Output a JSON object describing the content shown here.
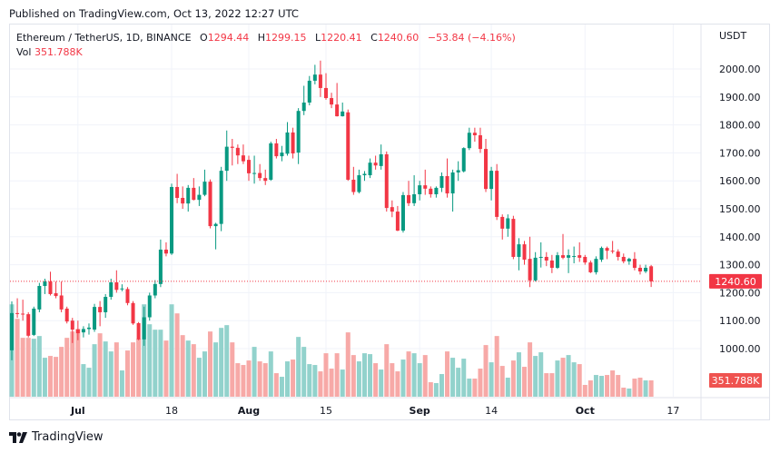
{
  "published": "Published on TradingView.com, Oct 13, 2022 12:27 UTC",
  "legend": {
    "symbol": "Ethereum / TetherUS, 1D, BINANCE",
    "o_label": "O",
    "o": "1294.44",
    "h_label": "H",
    "h": "1299.15",
    "l_label": "L",
    "l": "1220.41",
    "c_label": "C",
    "c": "1240.60",
    "change": "−53.84 (−4.16%)",
    "vol_label": "Vol",
    "vol": "351.788K"
  },
  "footer": {
    "brand": "TradingView"
  },
  "colors": {
    "up": "#089981",
    "down": "#f23645",
    "vol_up": "#92d2cc",
    "vol_down": "#f7a9a7",
    "grid": "#f0f3fa"
  },
  "chart_data": {
    "type": "candlestick",
    "currency": "USDT",
    "x_range": [
      "2022-06-19",
      "2022-10-13"
    ],
    "ylim": [
      870,
      2100
    ],
    "grid": true,
    "y_ticks": [
      "2000.00",
      "1900.00",
      "1800.00",
      "1700.00",
      "1600.00",
      "1500.00",
      "1400.00",
      "1300.00",
      "1200.00",
      "1100.00",
      "1000.00"
    ],
    "x_ticks": [
      {
        "label": "Jul",
        "date": "2022-07-01"
      },
      {
        "label": "18",
        "date": "2022-07-18"
      },
      {
        "label": "Aug",
        "date": "2022-08-01"
      },
      {
        "label": "15",
        "date": "2022-08-15"
      },
      {
        "label": "Sep",
        "date": "2022-09-01"
      },
      {
        "label": "14",
        "date": "2022-09-14"
      },
      {
        "label": "Oct",
        "date": "2022-10-01"
      },
      {
        "label": "17",
        "date": "2022-10-17"
      }
    ],
    "last_price": 1240.6,
    "last_price_label": "1240.60",
    "last_volume_label": "351.788K",
    "ohlc": [
      [
        994,
        1169,
        958,
        1127
      ],
      [
        1127,
        1180,
        1110,
        1125
      ],
      [
        1125,
        1175,
        1100,
        1122
      ],
      [
        1123,
        1130,
        1040,
        1046
      ],
      [
        1049,
        1150,
        1045,
        1143
      ],
      [
        1140,
        1235,
        1130,
        1224
      ],
      [
        1224,
        1250,
        1195,
        1240
      ],
      [
        1240,
        1275,
        1190,
        1195
      ],
      [
        1198,
        1240,
        1180,
        1188
      ],
      [
        1190,
        1240,
        1130,
        1140
      ],
      [
        1143,
        1150,
        1090,
        1097
      ],
      [
        1100,
        1110,
        1020,
        1068
      ],
      [
        1068,
        1100,
        1030,
        1055
      ],
      [
        1058,
        1080,
        1040,
        1070
      ],
      [
        1070,
        1090,
        1050,
        1075
      ],
      [
        1068,
        1160,
        1060,
        1149
      ],
      [
        1149,
        1170,
        1080,
        1130
      ],
      [
        1130,
        1195,
        1110,
        1185
      ],
      [
        1185,
        1250,
        1175,
        1237
      ],
      [
        1237,
        1280,
        1200,
        1210
      ],
      [
        1212,
        1230,
        1205,
        1215
      ],
      [
        1213,
        1220,
        1155,
        1163
      ],
      [
        1163,
        1170,
        1085,
        1090
      ],
      [
        1091,
        1095,
        1030,
        1033
      ],
      [
        1033,
        1150,
        1010,
        1112
      ],
      [
        1112,
        1200,
        1100,
        1190
      ],
      [
        1190,
        1245,
        1180,
        1231
      ],
      [
        1231,
        1390,
        1220,
        1354
      ],
      [
        1354,
        1380,
        1330,
        1340
      ],
      [
        1340,
        1590,
        1335,
        1578
      ],
      [
        1578,
        1625,
        1520,
        1539
      ],
      [
        1539,
        1580,
        1500,
        1519
      ],
      [
        1519,
        1585,
        1490,
        1575
      ],
      [
        1575,
        1610,
        1530,
        1532
      ],
      [
        1532,
        1580,
        1510,
        1550
      ],
      [
        1550,
        1640,
        1545,
        1597
      ],
      [
        1597,
        1605,
        1430,
        1438
      ],
      [
        1438,
        1450,
        1355,
        1446
      ],
      [
        1446,
        1650,
        1420,
        1636
      ],
      [
        1636,
        1780,
        1600,
        1722
      ],
      [
        1722,
        1750,
        1655,
        1718
      ],
      [
        1718,
        1730,
        1660,
        1691
      ],
      [
        1691,
        1730,
        1660,
        1670
      ],
      [
        1675,
        1690,
        1600,
        1627
      ],
      [
        1627,
        1690,
        1590,
        1628
      ],
      [
        1628,
        1660,
        1600,
        1610
      ],
      [
        1610,
        1640,
        1585,
        1600
      ],
      [
        1604,
        1740,
        1600,
        1734
      ],
      [
        1734,
        1750,
        1680,
        1688
      ],
      [
        1688,
        1725,
        1670,
        1701
      ],
      [
        1697,
        1810,
        1690,
        1773
      ],
      [
        1773,
        1790,
        1680,
        1698
      ],
      [
        1701,
        1860,
        1660,
        1850
      ],
      [
        1850,
        1940,
        1835,
        1880
      ],
      [
        1880,
        1975,
        1870,
        1958
      ],
      [
        1958,
        2015,
        1945,
        1980
      ],
      [
        1980,
        2030,
        1900,
        1932
      ],
      [
        1932,
        1985,
        1890,
        1896
      ],
      [
        1896,
        1915,
        1860,
        1873
      ],
      [
        1873,
        1950,
        1830,
        1831
      ],
      [
        1831,
        1880,
        1830,
        1848
      ],
      [
        1845,
        1855,
        1600,
        1604
      ],
      [
        1604,
        1650,
        1550,
        1560
      ],
      [
        1560,
        1640,
        1555,
        1620
      ],
      [
        1620,
        1635,
        1600,
        1625
      ],
      [
        1620,
        1680,
        1610,
        1665
      ],
      [
        1665,
        1690,
        1640,
        1655
      ],
      [
        1653,
        1730,
        1640,
        1695
      ],
      [
        1695,
        1705,
        1490,
        1503
      ],
      [
        1506,
        1530,
        1470,
        1490
      ],
      [
        1490,
        1510,
        1420,
        1422
      ],
      [
        1422,
        1560,
        1415,
        1549
      ],
      [
        1549,
        1600,
        1510,
        1520
      ],
      [
        1520,
        1620,
        1510,
        1552
      ],
      [
        1552,
        1600,
        1530,
        1584
      ],
      [
        1584,
        1640,
        1550,
        1572
      ],
      [
        1572,
        1580,
        1540,
        1552
      ],
      [
        1552,
        1580,
        1540,
        1575
      ],
      [
        1575,
        1630,
        1560,
        1617
      ],
      [
        1617,
        1680,
        1540,
        1555
      ],
      [
        1555,
        1640,
        1490,
        1630
      ],
      [
        1630,
        1670,
        1600,
        1638
      ],
      [
        1634,
        1720,
        1630,
        1717
      ],
      [
        1717,
        1790,
        1710,
        1772
      ],
      [
        1772,
        1790,
        1740,
        1763
      ],
      [
        1763,
        1790,
        1700,
        1714
      ],
      [
        1714,
        1750,
        1560,
        1571
      ],
      [
        1571,
        1650,
        1530,
        1636
      ],
      [
        1636,
        1660,
        1460,
        1471
      ],
      [
        1471,
        1480,
        1390,
        1429
      ],
      [
        1429,
        1480,
        1400,
        1466
      ],
      [
        1464,
        1475,
        1320,
        1328
      ],
      [
        1328,
        1395,
        1280,
        1373
      ],
      [
        1373,
        1385,
        1300,
        1318
      ],
      [
        1321,
        1400,
        1220,
        1244
      ],
      [
        1244,
        1345,
        1240,
        1325
      ],
      [
        1325,
        1380,
        1290,
        1328
      ],
      [
        1328,
        1345,
        1295,
        1315
      ],
      [
        1315,
        1335,
        1270,
        1289
      ],
      [
        1289,
        1345,
        1285,
        1334
      ],
      [
        1334,
        1410,
        1320,
        1325
      ],
      [
        1325,
        1355,
        1270,
        1334
      ],
      [
        1331,
        1365,
        1305,
        1331
      ],
      [
        1334,
        1380,
        1310,
        1325
      ],
      [
        1328,
        1335,
        1300,
        1308
      ],
      [
        1308,
        1315,
        1270,
        1273
      ],
      [
        1273,
        1330,
        1265,
        1321
      ],
      [
        1318,
        1365,
        1310,
        1360
      ],
      [
        1360,
        1365,
        1320,
        1350
      ],
      [
        1350,
        1385,
        1340,
        1347
      ],
      [
        1347,
        1355,
        1315,
        1328
      ],
      [
        1328,
        1340,
        1305,
        1312
      ],
      [
        1312,
        1325,
        1300,
        1321
      ],
      [
        1321,
        1345,
        1280,
        1289
      ],
      [
        1289,
        1300,
        1265,
        1276
      ],
      [
        1276,
        1300,
        1270,
        1289
      ],
      [
        1294.44,
        1299.15,
        1220.41,
        1240.6
      ]
    ],
    "volume_k": [
      1989,
      1677,
      1268,
      1268,
      1248,
      1307,
      839,
      878,
      858,
      1073,
      1268,
      1404,
      1463,
      702,
      624,
      1131,
      1365,
      1190,
      975,
      1170,
      566,
      995,
      1170,
      1248,
      1989,
      1560,
      1443,
      1443,
      1209,
      1989,
      1794,
      1326,
      1209,
      1131,
      839,
      975,
      1404,
      1170,
      1482,
      1541,
      1170,
      722,
      683,
      780,
      1073,
      761,
      722,
      975,
      507,
      429,
      761,
      800,
      1287,
      1073,
      702,
      683,
      546,
      936,
      605,
      936,
      585,
      1385,
      897,
      761,
      936,
      917,
      722,
      585,
      1131,
      722,
      546,
      800,
      975,
      936,
      722,
      897,
      312,
      293,
      488,
      975,
      839,
      624,
      819,
      390,
      390,
      605,
      1112,
      741,
      1307,
      663,
      410,
      780,
      956,
      644,
      1170,
      878,
      956,
      507,
      507,
      780,
      839,
      897,
      741,
      702,
      254,
      351,
      468,
      449,
      468,
      566,
      468,
      195,
      176,
      390,
      410,
      351,
      351.788
    ]
  }
}
